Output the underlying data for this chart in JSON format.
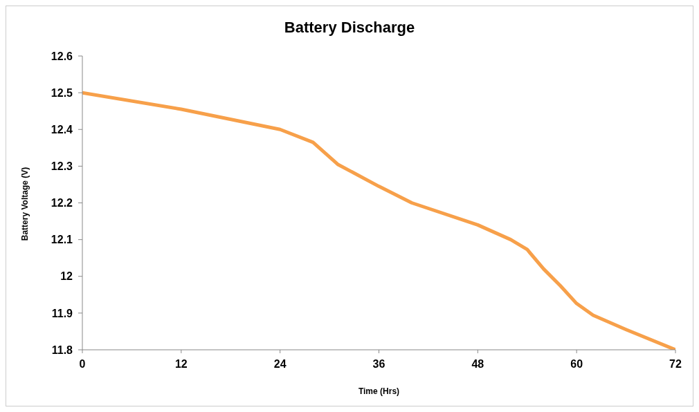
{
  "chart_data": {
    "type": "line",
    "title": "Battery Discharge",
    "xlabel": "Time (Hrs)",
    "ylabel": "Battery Voltage (V)",
    "x": [
      0,
      12,
      24,
      28,
      31,
      36,
      40,
      48,
      52,
      54,
      56,
      58,
      60,
      62,
      66,
      72
    ],
    "series": [
      {
        "color": "#f7a04a",
        "values": [
          12.5,
          12.455,
          12.4,
          12.365,
          12.305,
          12.245,
          12.2,
          12.14,
          12.1,
          12.073,
          12.02,
          11.975,
          11.926,
          11.894,
          11.855,
          11.8
        ]
      }
    ],
    "xlim": [
      0,
      72
    ],
    "xticks": [
      0,
      12,
      24,
      36,
      48,
      60,
      72
    ],
    "ylim": [
      11.8,
      12.6
    ],
    "yticks": [
      11.8,
      11.9,
      12,
      12.1,
      12.2,
      12.3,
      12.4,
      12.5,
      12.6
    ],
    "grid": false,
    "legend": false,
    "marker": "none",
    "line_style": "solid"
  }
}
